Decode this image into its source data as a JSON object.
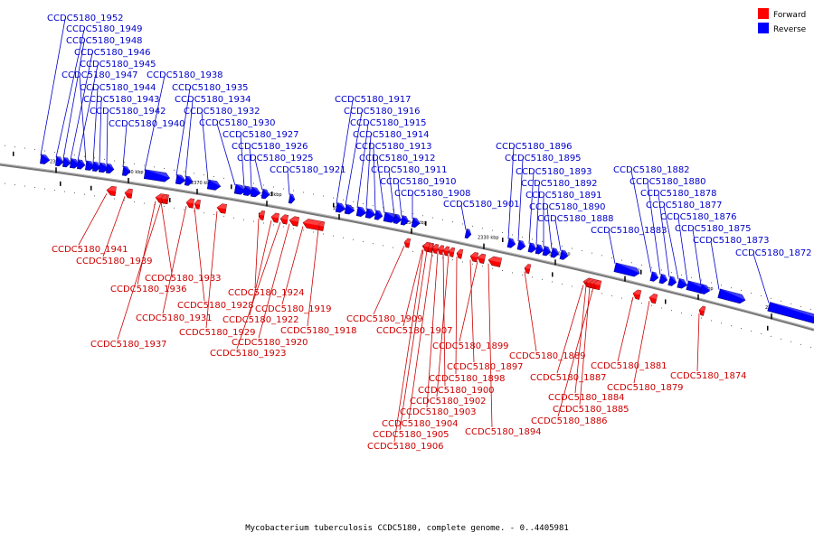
{
  "caption": "Mycobacterium tuberculosis CCDC5180, complete genome. - 0..4405981",
  "legend": [
    {
      "label": "Forward",
      "color": "#ff0000"
    },
    {
      "label": "Reverse",
      "color": "#0000ff"
    }
  ],
  "colors": {
    "forward": "#ff0000",
    "reverse": "#0000ff",
    "forward_label": "#cc0000",
    "reverse_label": "#0000cc",
    "backbone": "#777777"
  },
  "ticks": [
    "2390 kbp",
    "2380 kbp",
    "2370 kbp",
    "2360 kbp",
    "2350 kbp",
    "2340 kbp",
    "2330 kbp",
    "2320 kbp",
    "2310 kbp",
    "2300 kbp",
    "2290 kbp"
  ],
  "reverse_genes": [
    "CCDC5180_1952",
    "CCDC5180_1949",
    "CCDC5180_1948",
    "CCDC5180_1946",
    "CCDC5180_1945",
    "CCDC5180_1947",
    "CCDC5180_1944",
    "CCDC5180_1943",
    "CCDC5180_1942",
    "CCDC5180_1940",
    "CCDC5180_1938",
    "CCDC5180_1935",
    "CCDC5180_1934",
    "CCDC5180_1932",
    "CCDC5180_1930",
    "CCDC5180_1927",
    "CCDC5180_1926",
    "CCDC5180_1925",
    "CCDC5180_1921",
    "CCDC5180_1917",
    "CCDC5180_1916",
    "CCDC5180_1915",
    "CCDC5180_1914",
    "CCDC5180_1913",
    "CCDC5180_1912",
    "CCDC5180_1911",
    "CCDC5180_1910",
    "CCDC5180_1908",
    "CCDC5180_1901",
    "CCDC5180_1896",
    "CCDC5180_1895",
    "CCDC5180_1893",
    "CCDC5180_1892",
    "CCDC5180_1891",
    "CCDC5180_1890",
    "CCDC5180_1888",
    "CCDC5180_1883",
    "CCDC5180_1882",
    "CCDC5180_1880",
    "CCDC5180_1878",
    "CCDC5180_1877",
    "CCDC5180_1876",
    "CCDC5180_1875",
    "CCDC5180_1873",
    "CCDC5180_1872"
  ],
  "forward_genes": [
    "CCDC5180_1941",
    "CCDC5180_1939",
    "CCDC5180_1933",
    "CCDC5180_1936",
    "CCDC5180_1928",
    "CCDC5180_1931",
    "CCDC5180_1929",
    "CCDC5180_1937",
    "CCDC5180_1924",
    "CCDC5180_1922",
    "CCDC5180_1919",
    "CCDC5180_1920",
    "CCDC5180_1918",
    "CCDC5180_1923",
    "CCDC5180_1909",
    "CCDC5180_1907",
    "CCDC5180_1899",
    "CCDC5180_1897",
    "CCDC5180_1898",
    "CCDC5180_1902",
    "CCDC5180_1900",
    "CCDC5180_1903",
    "CCDC5180_1904",
    "CCDC5180_1905",
    "CCDC5180_1906",
    "CCDC5180_1894",
    "CCDC5180_1889",
    "CCDC5180_1887",
    "CCDC5180_1884",
    "CCDC5180_1885",
    "CCDC5180_1886",
    "CCDC5180_1881",
    "CCDC5180_1879",
    "CCDC5180_1874"
  ]
}
